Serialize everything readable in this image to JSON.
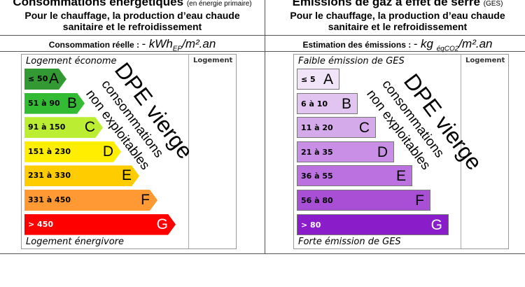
{
  "energy": {
    "title": "Consommations énergétiques",
    "title_note": "(en énergie primaire)",
    "subtitle_1": "Pour le chauffage, la production d’eau chaude",
    "subtitle_2": "sanitaire et le refroidissement",
    "measure_label": "Consommation réelle :",
    "measure_value": "- kWh",
    "measure_sub": "EP",
    "measure_unit": "/m².an",
    "top_caption": "Logement économe",
    "bottom_caption": "Logement énergivore",
    "column_header": "Logement",
    "classes": [
      {
        "range": "≤ 50",
        "letter": "A",
        "color": "#339933"
      },
      {
        "range": "51 à 90",
        "letter": "B",
        "color": "#33bb33"
      },
      {
        "range": "91 à 150",
        "letter": "C",
        "color": "#bbee33"
      },
      {
        "range": "151 à 230",
        "letter": "D",
        "color": "#ffee00"
      },
      {
        "range": "231 à 330",
        "letter": "E",
        "color": "#ffcc00"
      },
      {
        "range": "331 à 450",
        "letter": "F",
        "color": "#ff9933"
      },
      {
        "range": "> 450",
        "letter": "G",
        "color": "#ff0000"
      }
    ],
    "watermark_1": "DPE vierge",
    "watermark_2": "consommations non exploitables"
  },
  "ges": {
    "title": "Emissions de gaz à effet de serre",
    "title_note": "(GES)",
    "subtitle_1": "Pour le chauffage, la production d’eau chaude",
    "subtitle_2": "sanitaire et le refroidissement",
    "measure_label": "Estimation des émissions :",
    "measure_value": "- kg ",
    "measure_sub": "éqCO2",
    "measure_unit": "/m².an",
    "top_caption": "Faible émission de GES",
    "bottom_caption": "Forte émission de GES",
    "column_header": "Logement",
    "classes": [
      {
        "range": "≤ 5",
        "letter": "A",
        "color": "#f2e4f8"
      },
      {
        "range": "6 à 10",
        "letter": "B",
        "color": "#e2c4f0"
      },
      {
        "range": "11 à 20",
        "letter": "C",
        "color": "#d5aaeb"
      },
      {
        "range": "21 à 35",
        "letter": "D",
        "color": "#c98ee6"
      },
      {
        "range": "36 à 55",
        "letter": "E",
        "color": "#bb72e0"
      },
      {
        "range": "56 à 80",
        "letter": "F",
        "color": "#a94fd6"
      },
      {
        "range": "> 80",
        "letter": "G",
        "color": "#8b1cc9"
      }
    ],
    "watermark_1": "DPE vierge",
    "watermark_2": "consommations non exploitables"
  }
}
